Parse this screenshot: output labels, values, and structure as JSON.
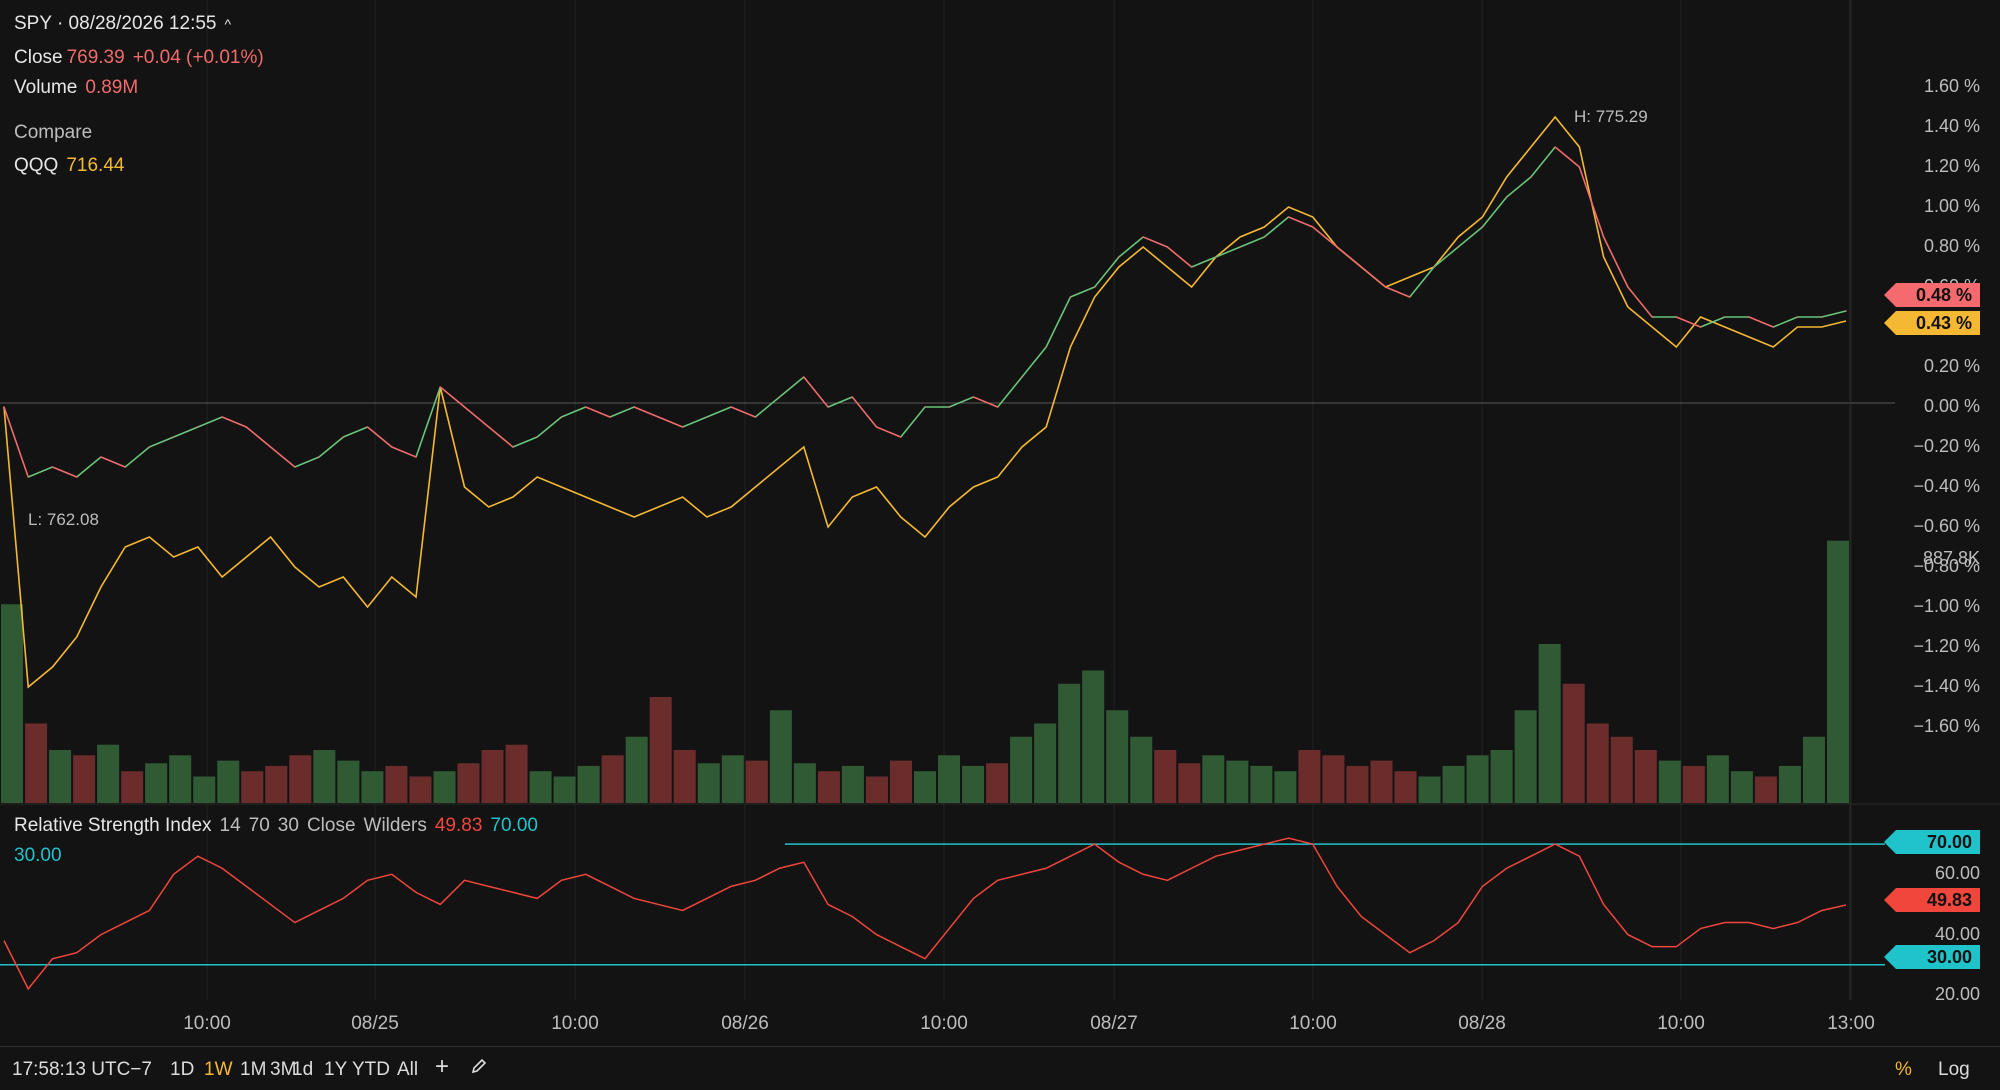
{
  "header": {
    "symbol_line": "SPY · 08/28/2026 12:55",
    "caret": "^",
    "close_label": "Close",
    "close_value": "769.39",
    "close_change": "+0.04 (+0.01%)",
    "volume_label": "Volume",
    "volume_value": "0.89M",
    "compare_label": "Compare",
    "compare_symbol": "QQQ",
    "compare_value": "716.44"
  },
  "annotations": {
    "high": "H:  775.29",
    "low": "L:  762.08",
    "volume_marker": "887.8K"
  },
  "price_tags": {
    "spy": "0.48 %",
    "qqq": "0.43 %"
  },
  "rsi_legend": {
    "title": "Relative Strength Index",
    "length": "14",
    "overbought": "70",
    "oversold": "30",
    "source": "Close",
    "method": "Wilders",
    "value": "49.83",
    "upper": "70.00",
    "lower": "30.00"
  },
  "rsi_tags": {
    "upper": "70.00",
    "value": "49.83",
    "lower": "30.00"
  },
  "bottom_bar": {
    "time": "17:58:13 UTC−7",
    "ranges": [
      "1D",
      "1W",
      "1M",
      "3M",
      "1d",
      "1Y",
      "YTD",
      "All"
    ],
    "active_range": "1W",
    "plus": "+",
    "percent": "%",
    "log": "Log"
  },
  "colors": {
    "background": "#131313",
    "spy_up": "#67c47a",
    "spy_down": "#f06b6b",
    "qqq": "#f5b833",
    "rsi": "#f0463c",
    "rsi_bands": "#21c3cb",
    "volume_up": "#2f5a34",
    "volume_down": "#6b2c2c"
  },
  "chart_data": [
    {
      "type": "line",
      "x_ticks": [
        "10:00",
        "08/25",
        "10:00",
        "08/26",
        "10:00",
        "08/27",
        "10:00",
        "08/28",
        "10:00",
        "13:00"
      ],
      "y_ticks": [
        "1.60 %",
        "1.40 %",
        "1.20 %",
        "1.00 %",
        "0.80 %",
        "0.60 %",
        "0.40 %",
        "0.20 %",
        "0.00 %",
        "−0.20 %",
        "−0.40 %",
        "−0.60 %",
        "−0.80 %",
        "−1.00 %",
        "−1.20 %",
        "−1.40 %",
        "−1.60 %"
      ],
      "ylim": [
        -1.8,
        1.8
      ],
      "series": [
        {
          "name": "SPY",
          "values": [
            0.0,
            -0.35,
            -0.3,
            -0.35,
            -0.25,
            -0.3,
            -0.2,
            -0.15,
            -0.1,
            -0.05,
            -0.1,
            -0.2,
            -0.3,
            -0.25,
            -0.15,
            -0.1,
            -0.2,
            -0.25,
            0.1,
            0.0,
            -0.1,
            -0.2,
            -0.15,
            -0.05,
            0.0,
            -0.05,
            0.0,
            -0.05,
            -0.1,
            -0.05,
            0.0,
            -0.05,
            0.05,
            0.15,
            0.0,
            0.05,
            -0.1,
            -0.15,
            0.0,
            0.0,
            0.05,
            0.0,
            0.15,
            0.3,
            0.55,
            0.6,
            0.75,
            0.85,
            0.8,
            0.7,
            0.75,
            0.8,
            0.85,
            0.95,
            0.9,
            0.8,
            0.7,
            0.6,
            0.55,
            0.7,
            0.8,
            0.9,
            1.05,
            1.15,
            1.3,
            1.2,
            0.85,
            0.6,
            0.45,
            0.45,
            0.4,
            0.45,
            0.45,
            0.4,
            0.45,
            0.45,
            0.48
          ],
          "up_color": "#67c47a",
          "down_color": "#f06b6b"
        },
        {
          "name": "QQQ",
          "values": [
            0.0,
            -1.4,
            -1.3,
            -1.15,
            -0.9,
            -0.7,
            -0.65,
            -0.75,
            -0.7,
            -0.85,
            -0.75,
            -0.65,
            -0.8,
            -0.9,
            -0.85,
            -1.0,
            -0.85,
            -0.95,
            0.1,
            -0.4,
            -0.5,
            -0.45,
            -0.35,
            -0.4,
            -0.45,
            -0.5,
            -0.55,
            -0.5,
            -0.45,
            -0.55,
            -0.5,
            -0.4,
            -0.3,
            -0.2,
            -0.6,
            -0.45,
            -0.4,
            -0.55,
            -0.65,
            -0.5,
            -0.4,
            -0.35,
            -0.2,
            -0.1,
            0.3,
            0.55,
            0.7,
            0.8,
            0.7,
            0.6,
            0.75,
            0.85,
            0.9,
            1.0,
            0.95,
            0.8,
            0.7,
            0.6,
            0.65,
            0.7,
            0.85,
            0.95,
            1.15,
            1.3,
            1.45,
            1.3,
            0.75,
            0.5,
            0.4,
            0.3,
            0.45,
            0.4,
            0.35,
            0.3,
            0.4,
            0.4,
            0.43
          ],
          "color": "#f5b833"
        }
      ],
      "annotations": [
        "H:  775.29",
        "L:  762.08"
      ]
    },
    {
      "type": "bar",
      "name": "Volume",
      "y_max": 1.0,
      "values": [
        0.75,
        0.3,
        0.2,
        0.18,
        0.22,
        0.12,
        0.15,
        0.18,
        0.1,
        0.16,
        0.12,
        0.14,
        0.18,
        0.2,
        0.16,
        0.12,
        0.14,
        0.1,
        0.12,
        0.15,
        0.2,
        0.22,
        0.12,
        0.1,
        0.14,
        0.18,
        0.25,
        0.4,
        0.2,
        0.15,
        0.18,
        0.16,
        0.35,
        0.15,
        0.12,
        0.14,
        0.1,
        0.16,
        0.12,
        0.18,
        0.14,
        0.15,
        0.25,
        0.3,
        0.45,
        0.5,
        0.35,
        0.25,
        0.2,
        0.15,
        0.18,
        0.16,
        0.14,
        0.12,
        0.2,
        0.18,
        0.14,
        0.16,
        0.12,
        0.1,
        0.14,
        0.18,
        0.2,
        0.35,
        0.6,
        0.45,
        0.3,
        0.25,
        0.2,
        0.16,
        0.14,
        0.18,
        0.12,
        0.1,
        0.14,
        0.25,
        0.99
      ],
      "up_color": "#2f5a34",
      "down_color": "#6b2c2c"
    },
    {
      "type": "line",
      "name": "Relative Strength Index",
      "y_ticks": [
        "70.00",
        "60.00",
        "40.00",
        "30.00",
        "20.00"
      ],
      "ylim": [
        15,
        78
      ],
      "bands": [
        70,
        30
      ],
      "values": [
        38,
        22,
        32,
        34,
        40,
        44,
        48,
        60,
        66,
        62,
        56,
        50,
        44,
        48,
        52,
        58,
        60,
        54,
        50,
        58,
        56,
        54,
        52,
        58,
        60,
        56,
        52,
        50,
        48,
        52,
        56,
        58,
        62,
        64,
        50,
        46,
        40,
        36,
        32,
        42,
        52,
        58,
        60,
        62,
        66,
        70,
        64,
        60,
        58,
        62,
        66,
        68,
        70,
        72,
        70,
        56,
        46,
        40,
        34,
        38,
        44,
        56,
        62,
        66,
        70,
        66,
        50,
        40,
        36,
        36,
        42,
        44,
        44,
        42,
        44,
        48,
        49.83
      ],
      "color": "#f0463c"
    }
  ]
}
